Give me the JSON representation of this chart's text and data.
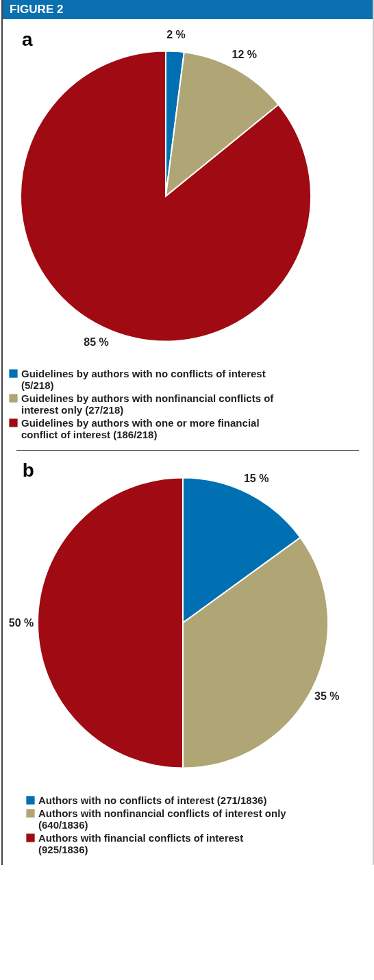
{
  "chart_data": [
    {
      "type": "pie",
      "title": "a",
      "annotations": [
        "FIGURE 2"
      ],
      "categories": [
        "Guidelines by authors with no conflicts of interest (5/218)",
        "Guidelines by authors with nonfinancial conflicts of interest only (27/218)",
        "Guidelines by authors with one or more financial conflict of interest (186/218)"
      ],
      "values": [
        2,
        12,
        85
      ],
      "value_labels": [
        "2 %",
        "12 %",
        "85 %"
      ],
      "colors": [
        "#0070b2",
        "#b0a574",
        "#a00a12"
      ],
      "legend": "bottom"
    },
    {
      "type": "pie",
      "title": "b",
      "categories": [
        "Authors with no conflicts of interest (271/1836)",
        "Authors with nonfinancial conflicts of interest only (640/1836)",
        "Authors with financial conflicts of interest (925/1836)"
      ],
      "values": [
        15,
        35,
        50
      ],
      "value_labels": [
        "15 %",
        "35 %",
        "50 %"
      ],
      "colors": [
        "#0070b2",
        "#b0a574",
        "#a00a12"
      ],
      "legend": "bottom"
    }
  ]
}
